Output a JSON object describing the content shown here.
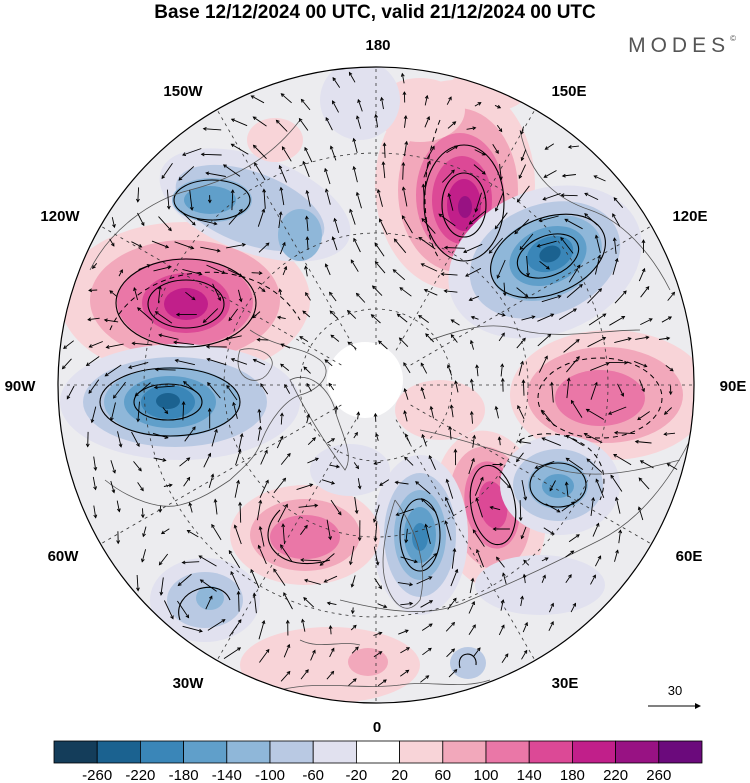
{
  "title": "Base 12/12/2024 00 UTC, valid 21/12/2024 00 UTC",
  "brand": "MODES",
  "brand_mark": "©",
  "longitude_labels": {
    "n180": "180",
    "e150": "150E",
    "e120": "120E",
    "e90": "90E",
    "e60": "60E",
    "e30": "30E",
    "n0": "0",
    "w30": "30W",
    "w60": "60W",
    "w90": "90W",
    "w120": "120W",
    "w150": "150W"
  },
  "vector_reference": {
    "value": "30"
  },
  "colorbar": {
    "ticks": [
      "-260",
      "-220",
      "-180",
      "-140",
      "-100",
      "-60",
      "-20",
      "20",
      "60",
      "100",
      "140",
      "180",
      "220",
      "260"
    ],
    "colors": [
      "#143d5a",
      "#1b6290",
      "#3a86b8",
      "#609fca",
      "#8fb7d9",
      "#b9c9e3",
      "#e1e1ef",
      "#ffffff",
      "#f8d4d8",
      "#f2a8bb",
      "#ea77a7",
      "#dc4996",
      "#c11f8a",
      "#981283",
      "#6b0a7c"
    ]
  },
  "anomaly_centers": [
    {
      "id": "pos-east-siberia",
      "sign": "positive",
      "level": 0.95
    },
    {
      "id": "neg-far-east",
      "sign": "negative",
      "level": 0.85
    },
    {
      "id": "pos-canada",
      "sign": "positive",
      "level": 0.9
    },
    {
      "id": "neg-hudson",
      "sign": "negative",
      "level": 0.85
    },
    {
      "id": "neg-alaska",
      "sign": "negative",
      "level": 0.65
    },
    {
      "id": "pos-central-asia",
      "sign": "positive",
      "level": 0.55
    },
    {
      "id": "pos-russia",
      "sign": "positive",
      "level": 0.8
    },
    {
      "id": "neg-scandinavia",
      "sign": "negative",
      "level": 0.7
    },
    {
      "id": "neg-west-siberia",
      "sign": "negative",
      "level": 0.6
    },
    {
      "id": "pos-atlantic",
      "sign": "positive",
      "level": 0.55
    },
    {
      "id": "neg-mid-atlantic",
      "sign": "negative",
      "level": 0.4
    },
    {
      "id": "pos-north-pacific",
      "sign": "positive",
      "level": 0.3
    },
    {
      "id": "neg-bering",
      "sign": "negative",
      "level": 0.3
    },
    {
      "id": "neg-arctic",
      "sign": "negative",
      "level": 0.25
    },
    {
      "id": "pos-africa",
      "sign": "positive",
      "level": 0.3
    }
  ]
}
